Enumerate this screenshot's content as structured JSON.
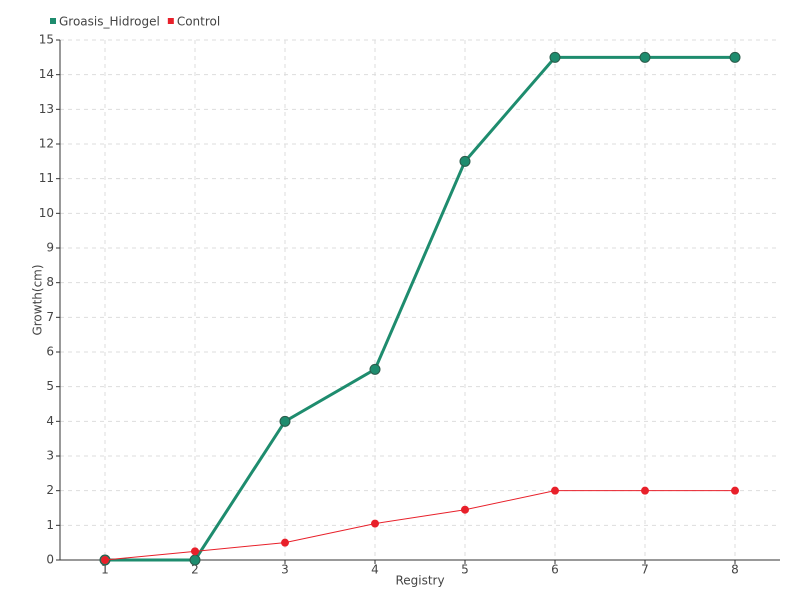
{
  "chart_data": {
    "type": "line",
    "x_label": "Registry",
    "y_label": "Growth(cm)",
    "x": [
      1,
      2,
      3,
      4,
      5,
      6,
      7,
      8
    ],
    "series": [
      {
        "name": "Groasis_Hidrogel",
        "color": "#1e8c6e",
        "values": [
          0,
          0,
          4,
          5.5,
          11.5,
          14.5,
          14.5,
          14.5
        ]
      },
      {
        "name": "Control",
        "color": "#e8202a",
        "values": [
          0,
          0.25,
          0.5,
          1.05,
          1.45,
          2,
          2,
          2
        ]
      }
    ],
    "xlim": [
      0.5,
      8.5
    ],
    "xticks": [
      1,
      2,
      3,
      4,
      5,
      6,
      7,
      8
    ],
    "ylim": [
      0,
      15
    ],
    "yticks": [
      0,
      1,
      2,
      3,
      4,
      5,
      6,
      7,
      8,
      9,
      10,
      11,
      12,
      13,
      14,
      15
    ],
    "grid": true,
    "legend": "top-left"
  }
}
